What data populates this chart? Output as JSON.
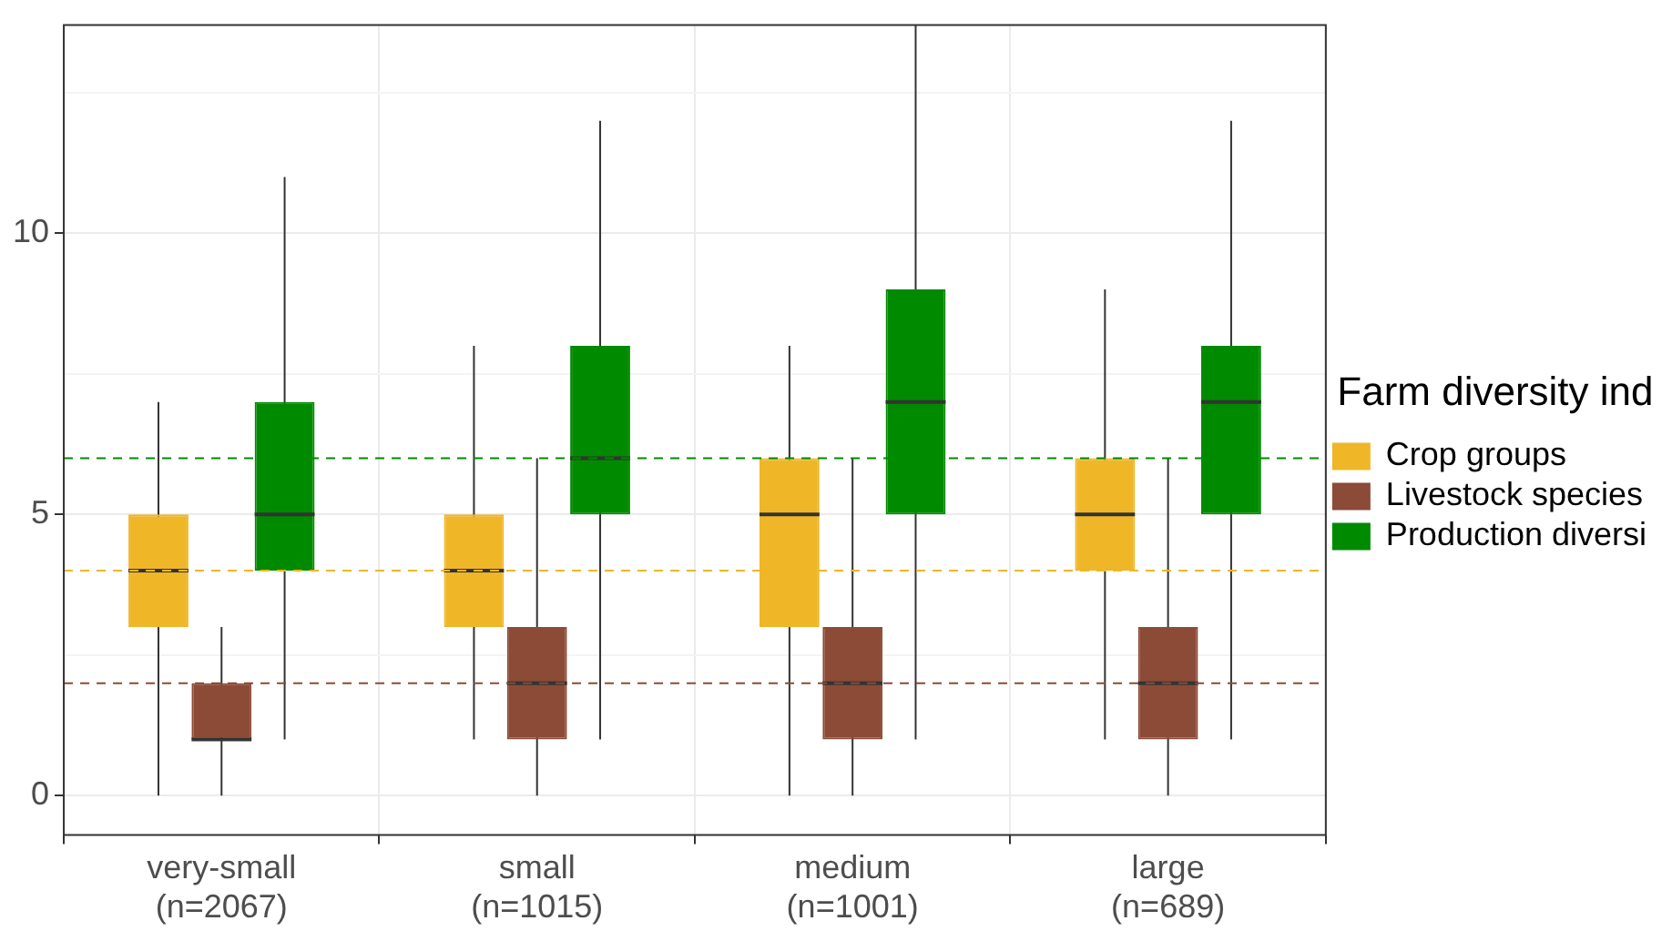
{
  "chart_data": {
    "type": "box",
    "categories": [
      "very-small\n(n=2067)",
      "small\n(n=1015)",
      "medium\n(n=1001)",
      "large\n(n=689)"
    ],
    "legend_title": "Farm diversity ind",
    "series": [
      {
        "name": "Crop groups",
        "color": "#efb627",
        "boxes": [
          {
            "low": 0,
            "q1": 3,
            "median": 4,
            "q3": 5,
            "high": 7
          },
          {
            "low": 1,
            "q1": 3,
            "median": 4,
            "q3": 5,
            "high": 8
          },
          {
            "low": 0,
            "q1": 3,
            "median": 5,
            "q3": 6,
            "high": 8
          },
          {
            "low": 1,
            "q1": 4,
            "median": 5,
            "q3": 6,
            "high": 9
          }
        ]
      },
      {
        "name": "Livestock species",
        "color": "#8b4b37",
        "boxes": [
          {
            "low": 0,
            "q1": 1,
            "median": 1,
            "q3": 2,
            "high": 3
          },
          {
            "low": 0,
            "q1": 1,
            "median": 2,
            "q3": 3,
            "high": 6
          },
          {
            "low": 0,
            "q1": 1,
            "median": 2,
            "q3": 3,
            "high": 6
          },
          {
            "low": 0,
            "q1": 1,
            "median": 2,
            "q3": 3,
            "high": 6
          }
        ]
      },
      {
        "name": "Production diversi",
        "color": "#008a00",
        "boxes": [
          {
            "low": 1,
            "q1": 4,
            "median": 5,
            "q3": 7,
            "high": 11
          },
          {
            "low": 1,
            "q1": 5,
            "median": 6,
            "q3": 8,
            "high": 12
          },
          {
            "low": 1,
            "q1": 5,
            "median": 7,
            "q3": 9,
            "high": 13.7
          },
          {
            "low": 1,
            "q1": 5,
            "median": 7,
            "q3": 8,
            "high": 12
          }
        ]
      }
    ],
    "ref_lines": [
      {
        "axis": "y",
        "value": 6,
        "color": "#008a00",
        "line_style": "dashed"
      },
      {
        "axis": "y",
        "value": 4,
        "color": "#efb627",
        "line_style": "dashed"
      },
      {
        "axis": "y",
        "value": 2,
        "color": "#8b4b37",
        "line_style": "dashed"
      }
    ],
    "ylim": [
      -0.7,
      13.7
    ],
    "yticks": [
      0,
      {
        "value": 2.5,
        "label": null
      },
      5,
      {
        "value": 7.5,
        "label": null
      },
      10,
      {
        "value": 12.5,
        "label": null
      }
    ],
    "grid": true,
    "legend": "right"
  }
}
